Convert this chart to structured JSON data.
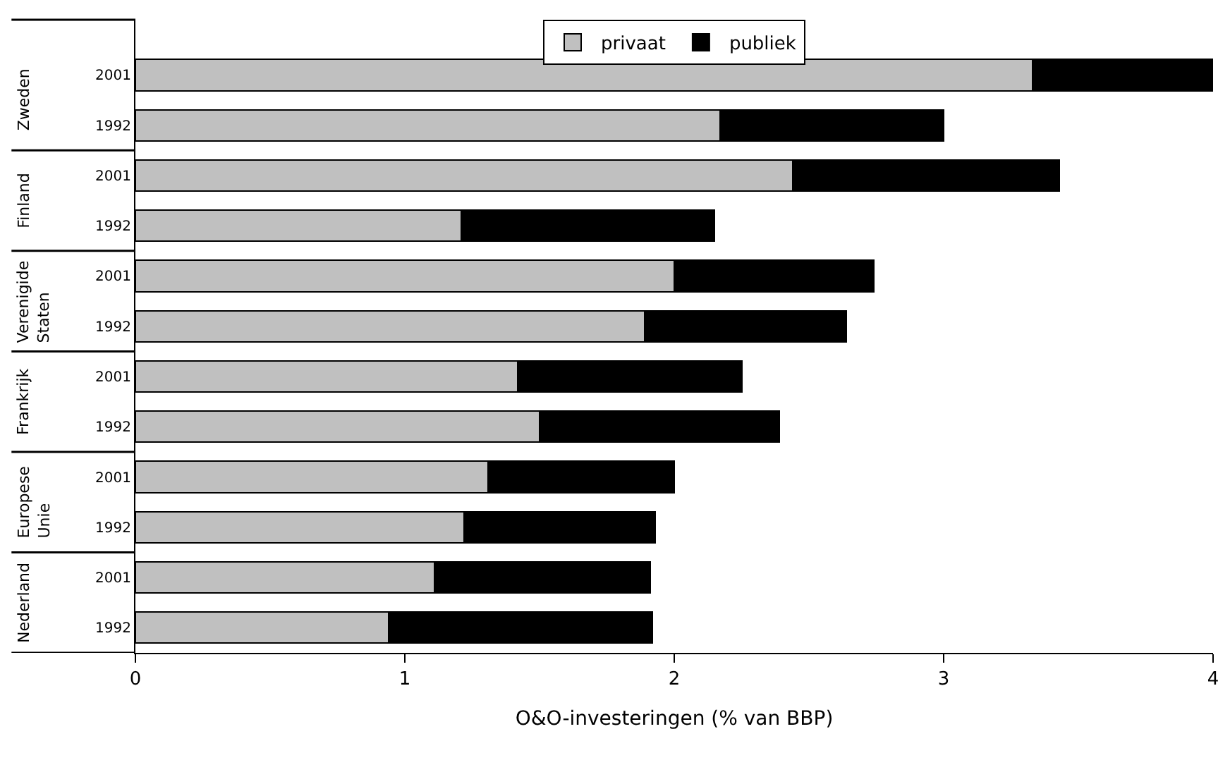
{
  "chart_data": {
    "type": "bar",
    "orientation": "horizontal",
    "stacked": true,
    "xlabel": "O&O-investeringen (% van BBP)",
    "categories": [
      "2001",
      "1992",
      "2001",
      "1992",
      "2001",
      "1992",
      "2001",
      "1992",
      "2001",
      "1992",
      "2001",
      "1992"
    ],
    "annotations": [
      "Zweden",
      "Finland",
      "Verenigide Staten",
      "Frankrijk",
      "Europese Unie",
      "Nederland"
    ],
    "series": [
      {
        "name": "privaat",
        "color": "#c0c0c0",
        "values": [
          3.33,
          2.17,
          2.44,
          1.21,
          2.0,
          1.89,
          1.42,
          1.5,
          1.31,
          1.22,
          1.11,
          0.94
        ]
      },
      {
        "name": "publiek",
        "color": "#000000",
        "values": [
          0.67,
          0.83,
          0.99,
          0.94,
          0.74,
          0.75,
          0.83,
          0.89,
          0.69,
          0.71,
          0.8,
          0.98
        ]
      }
    ],
    "xlim": [
      0,
      4
    ],
    "xticks": [
      0,
      1,
      2,
      3,
      4
    ],
    "grid": false,
    "legend": "top"
  }
}
